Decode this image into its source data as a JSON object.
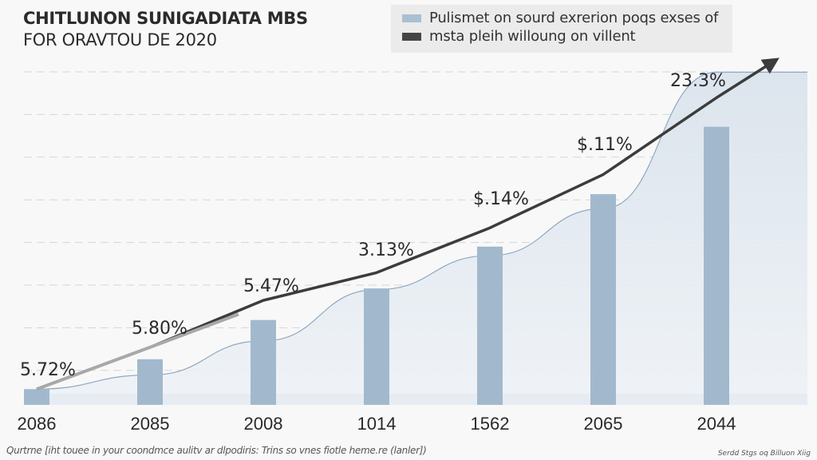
{
  "chart_data": {
    "type": "bar",
    "title": "CHITLUNON SUNIGADIATA MBS",
    "subtitle": "FOR ORAVTOU DE 2020",
    "xlabel": "",
    "ylabel": "",
    "categories": [
      "2086",
      "2085",
      "2008",
      "1014",
      "1562",
      "2065",
      "2044"
    ],
    "series": [
      {
        "name": "Pulismet on sourd exrerion poqs exses of",
        "type": "bar",
        "color": "#a2b9cd",
        "values": [
          0.37,
          1.07,
          1.99,
          2.73,
          3.71,
          4.94,
          6.52
        ]
      },
      {
        "name": "msta pleih willoung on villent",
        "type": "line",
        "color": "#3c3c3c",
        "values": [
          0.37,
          1.35,
          2.45,
          3.1,
          4.15,
          5.4,
          7.2
        ],
        "arrow_end": true
      },
      {
        "name": "background area",
        "type": "area",
        "color": "#dde6ef",
        "values": [
          0.37,
          0.7,
          1.5,
          2.7,
          3.5,
          4.6,
          7.8
        ]
      }
    ],
    "data_labels": [
      "5.72%",
      "5.80%",
      "5.47%",
      "3.13%",
      "$.14%",
      "$.11%",
      "23.3%"
    ],
    "ylim": [
      0,
      7.9
    ],
    "grid": true,
    "gridlines": 8,
    "legend_position": "top-right"
  },
  "footer": {
    "note": "Qurtrne [iht touee in your coondmce aulitv ar dlpodiris: Trins so vnes fiotle heme.re (lanler])",
    "source": "Serdd Stgs oq Billuon Xiig"
  }
}
